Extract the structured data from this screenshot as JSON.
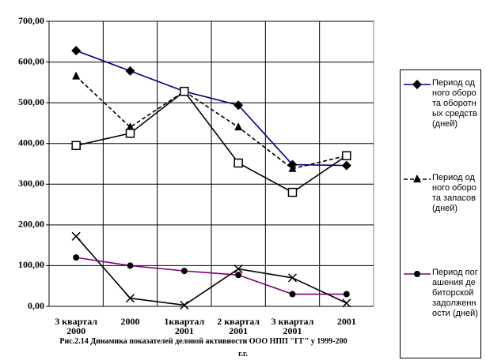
{
  "chart_data": {
    "type": "line",
    "caption": [
      "Рис.2.14 Динамика показателей деловой активности ООО  НПП \"ГГ\" у 1999-200",
      "г.г."
    ],
    "categories": [
      "3 квартал 2000",
      "2000",
      "1квартал 2001",
      "2 квартал 2001",
      "3 квартал 2001",
      "2001"
    ],
    "ylim": [
      0,
      700
    ],
    "yticks": [
      {
        "value": 0,
        "label": "0,00"
      },
      {
        "value": 100,
        "label": "100,00"
      },
      {
        "value": 200,
        "label": "200,00"
      },
      {
        "value": 300,
        "label": "300,00"
      },
      {
        "value": 400,
        "label": "400,00"
      },
      {
        "value": 500,
        "label": "500,00"
      },
      {
        "value": 600,
        "label": "600,00"
      },
      {
        "value": 700,
        "label": "700,00"
      }
    ],
    "grid": true,
    "series": [
      {
        "name": "Период одного оборота оборотных средств (дней)",
        "color": "#000080",
        "marker": "diamond",
        "dash": false,
        "values": [
          628,
          578,
          528,
          494,
          348,
          346
        ]
      },
      {
        "name": "Период одного оборота запасов(дней)",
        "color": "#000000",
        "marker": "triangle",
        "dash": true,
        "values": [
          565,
          440,
          528,
          440,
          338,
          370
        ]
      },
      {
        "name": "Период погашения дебиторской задолженности (дней)",
        "color": "#800080",
        "marker": "circle",
        "dash": false,
        "values": [
          120,
          100,
          87,
          77,
          30,
          30
        ]
      },
      {
        "color": "#000000",
        "marker": "square",
        "dash": false,
        "values": [
          395,
          425,
          528,
          352,
          280,
          370
        ]
      },
      {
        "color": "#000000",
        "marker": "x",
        "dash": false,
        "values": [
          172,
          20,
          3,
          92,
          70,
          8
        ]
      }
    ]
  }
}
